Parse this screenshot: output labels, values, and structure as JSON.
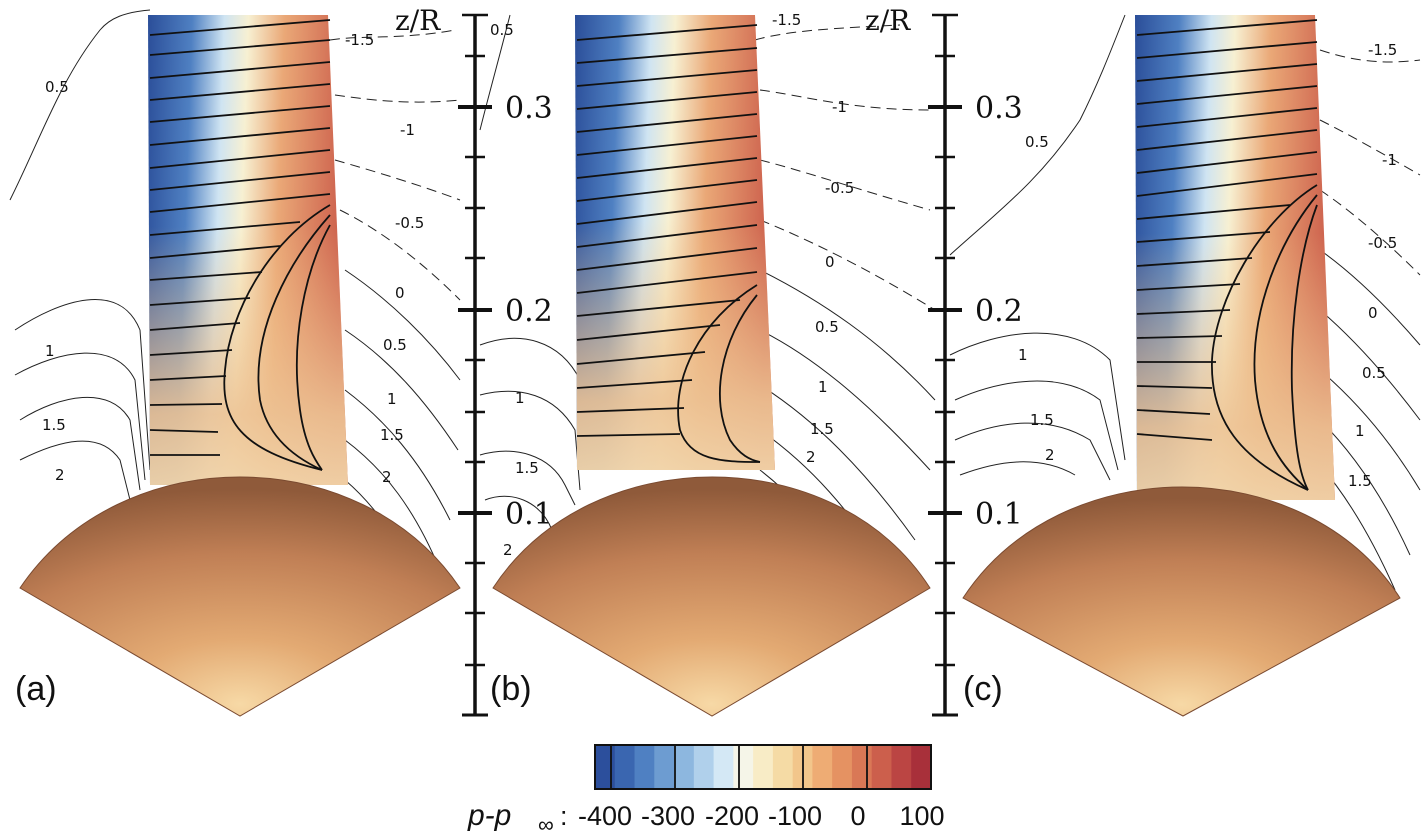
{
  "axis": {
    "title": "z/R",
    "ticks": [
      "0.3",
      "0.2",
      "0.1"
    ]
  },
  "colors": {
    "blue_dark": "#2b4e99",
    "blue_light": "#cfe4f2",
    "neutral": "#f7f0d2",
    "orange": "#eaa877",
    "red": "#b83a35",
    "sphere": "#b97a52"
  },
  "panels": [
    {
      "label": "(a)",
      "iso_labels": [
        "-1.5",
        "-1",
        "-0.5",
        "0",
        "0.5",
        "1",
        "1.5",
        "2",
        "0.5",
        "1",
        "1.5",
        "2"
      ]
    },
    {
      "label": "(b)",
      "iso_labels": [
        "0.5",
        "-1.5",
        "-1",
        "-0.5",
        "0",
        "0.5",
        "1",
        "1.5",
        "2",
        "1",
        "1.5",
        "2"
      ]
    },
    {
      "label": "(c)",
      "iso_labels": [
        "-1.5",
        "-1",
        "-0.5",
        "0",
        "0.5",
        "1",
        "1.5",
        "0.5",
        "1",
        "1.5",
        "2"
      ]
    }
  ],
  "colorbar": {
    "label_main": "p-p",
    "label_sub": "∞",
    "label_colon": ":",
    "ticks": [
      "-400",
      "-300",
      "-200",
      "-100",
      "0",
      "100"
    ],
    "range": [
      -425,
      100
    ],
    "colors": [
      "#2c4f9c",
      "#3a66b0",
      "#4f80c2",
      "#6d9cd1",
      "#8db7df",
      "#b0d0eb",
      "#d4e8f5",
      "#f5f5e8",
      "#f8ecc6",
      "#f5dba5",
      "#f2c68b",
      "#eeac74",
      "#e59262",
      "#d97856",
      "#cc5f4c",
      "#bb4543",
      "#a8303a"
    ]
  }
}
